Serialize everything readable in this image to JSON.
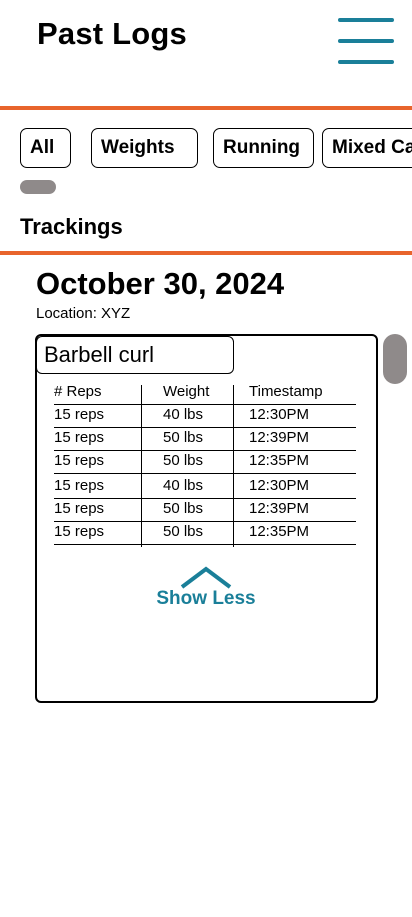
{
  "header": {
    "title": "Past Logs",
    "menu_icon": "hamburger-menu-icon"
  },
  "colors": {
    "accent": "#e8642c",
    "primary": "#1a7f99",
    "scrollbar": "#8f8a8a"
  },
  "filters": [
    {
      "label": "All"
    },
    {
      "label": "Weights"
    },
    {
      "label": "Running"
    },
    {
      "label": "Mixed Ca"
    }
  ],
  "section_title": "Trackings",
  "log": {
    "date": "October 30, 2024",
    "location": "Location: XYZ",
    "exercise": "Barbell curl",
    "columns": [
      "# Reps",
      "Weight",
      "Timestamp"
    ],
    "rows": [
      [
        "15 reps",
        "40 lbs",
        "12:30PM"
      ],
      [
        "15 reps",
        "50 lbs",
        "12:39PM"
      ],
      [
        "15 reps",
        "50 lbs",
        "12:35PM"
      ],
      [
        "15 reps",
        "40 lbs",
        "12:30PM"
      ],
      [
        "15 reps",
        "50 lbs",
        "12:39PM"
      ],
      [
        "15 reps",
        "50 lbs",
        "12:35PM"
      ]
    ],
    "toggle_label": "Show Less",
    "toggle_icon": "chevron-up-icon"
  }
}
